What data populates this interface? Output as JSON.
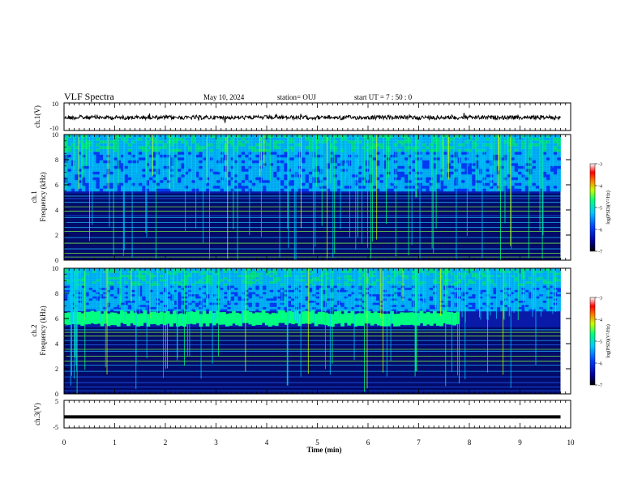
{
  "header": {
    "title": "VLF Spectra",
    "date": "May 10, 2024",
    "station": "station= OUJ",
    "start": "start  UT =   7 : 50 : 0"
  },
  "chart_data": [
    {
      "type": "line",
      "id": "ch1-waveform",
      "ylabel": "ch.1(V)",
      "ylim": [
        -10,
        10
      ],
      "ytick_labels": [
        "10",
        "-10"
      ],
      "xlim": [
        0,
        10
      ],
      "series": [
        {
          "values_description_level": 0
        }
      ]
    },
    {
      "type": "heatmap",
      "id": "ch1-spectrogram",
      "ylabel": "ch.1\nFrequency (kHz)",
      "ylabel_line1": "ch.1",
      "ylabel_line2": "Frequency  (kHz)",
      "ylim": [
        0,
        10
      ],
      "yticks": [
        0,
        2,
        4,
        6,
        8,
        10
      ],
      "xlim": [
        0,
        9.8
      ],
      "background_band_khz": [
        5.5,
        10
      ],
      "colorbar": {
        "label": "log(PSD)(V²/Hz)",
        "range": [
          -7,
          -3
        ],
        "ticks": [
          "-3",
          "-4",
          "-5",
          "-6",
          "-7"
        ]
      }
    },
    {
      "type": "heatmap",
      "id": "ch2-spectrogram",
      "ylabel_line1": "ch.2",
      "ylabel_line2": "Frequency  (kHz)",
      "ylim": [
        0,
        10
      ],
      "yticks": [
        0,
        2,
        4,
        6,
        8,
        10
      ],
      "xlim": [
        0,
        9.8
      ],
      "emission_band_khz": 6,
      "emission_end_min": 7.8,
      "colorbar": {
        "label": "log(PSD)(V²/Hz)",
        "range": [
          -7,
          -3
        ],
        "ticks": [
          "-3",
          "-4",
          "-5",
          "-6",
          "-7"
        ]
      }
    },
    {
      "type": "line",
      "id": "ch3-waveform",
      "ylabel": "ch.3(V)",
      "ylim": [
        -5,
        5
      ],
      "ytick_labels": [
        "5",
        "-5"
      ],
      "level": -1,
      "xlim": [
        0,
        10
      ]
    }
  ],
  "xaxis": {
    "label": "Time  (min)",
    "ticks": [
      "0",
      "1",
      "2",
      "3",
      "4",
      "5",
      "6",
      "7",
      "8",
      "9",
      "10"
    ],
    "range": [
      0,
      10
    ]
  },
  "colors": {
    "colormap": [
      "#000000",
      "#0000a0",
      "#0040ff",
      "#00c8ff",
      "#00ff80",
      "#c8ff00",
      "#ff8000",
      "#ff0000",
      "#ffffff"
    ]
  }
}
